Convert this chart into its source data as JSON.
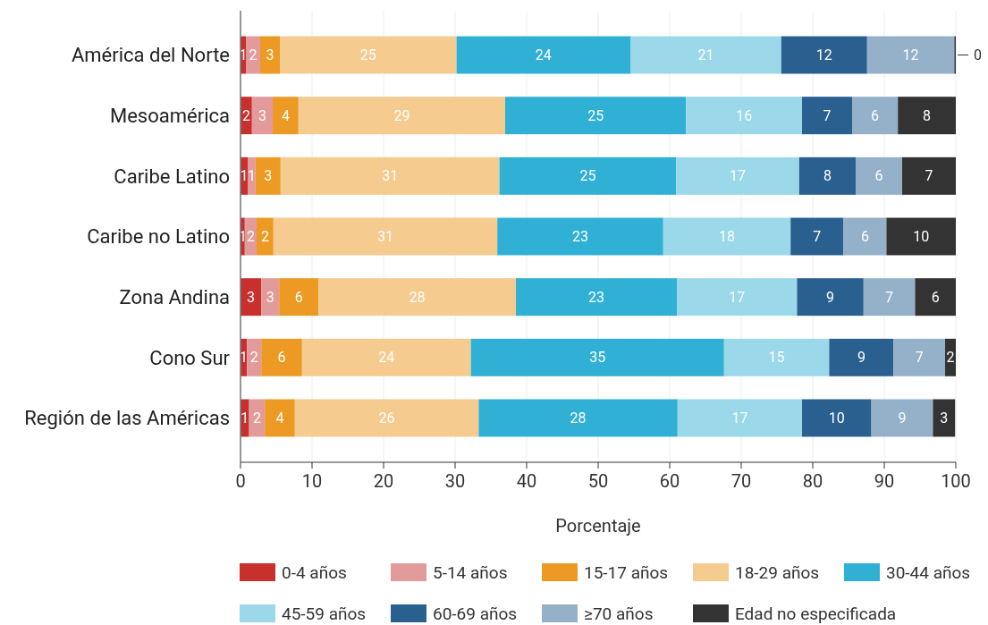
{
  "chart_data": {
    "type": "bar",
    "orientation": "horizontal",
    "stacked": true,
    "xlabel": "Porcentaje",
    "categories": [
      "América del Norte",
      "Mesoamérica",
      "Caribe Latino",
      "Caribe no Latino",
      "Zona Andina",
      "Cono Sur",
      "Región de las Américas"
    ],
    "xlim": [
      0,
      100
    ],
    "xticks": [
      0,
      10,
      20,
      30,
      40,
      50,
      60,
      70,
      80,
      90,
      100
    ],
    "grid": "x",
    "legend": "bottom",
    "series": [
      {
        "name": "0-4 años",
        "color": "#c8302e",
        "values": [
          0.75,
          1.6,
          1.0,
          0.6,
          2.9,
          0.9,
          1.2
        ],
        "value_labels": [
          "1",
          "2",
          "1",
          "1",
          "3",
          "1",
          "1"
        ]
      },
      {
        "name": "5-14 años",
        "color": "#e39a9a",
        "values": [
          2.0,
          2.9,
          1.1,
          1.65,
          2.5,
          2.0,
          2.2
        ],
        "value_labels": [
          "2",
          "3",
          "1",
          "2",
          "3",
          "2",
          "2"
        ]
      },
      {
        "name": "15-17 años",
        "color": "#ec9a23",
        "values": [
          2.75,
          3.6,
          3.5,
          2.35,
          5.5,
          5.7,
          4.2
        ],
        "value_labels": [
          "3",
          "4",
          "3",
          "2",
          "6",
          "6",
          "4"
        ]
      },
      {
        "name": "18-29 años",
        "color": "#f5cb90",
        "values": [
          24.7,
          28.9,
          30.6,
          31.3,
          27.6,
          23.6,
          25.7
        ],
        "value_labels": [
          "25",
          "29",
          "31",
          "31",
          "28",
          "24",
          "26"
        ]
      },
      {
        "name": "30-44 años",
        "color": "#31b0d6",
        "values": [
          24.3,
          25.3,
          24.7,
          23.2,
          22.5,
          35.4,
          27.8
        ],
        "value_labels": [
          "24",
          "25",
          "25",
          "23",
          "23",
          "35",
          "28"
        ]
      },
      {
        "name": "45-59 años",
        "color": "#9ad8ea",
        "values": [
          21.1,
          16.2,
          17.2,
          17.8,
          16.8,
          14.7,
          17.4
        ],
        "value_labels": [
          "21",
          "16",
          "17",
          "18",
          "17",
          "15",
          "17"
        ]
      },
      {
        "name": "60-69 años",
        "color": "#2a608f",
        "values": [
          12.0,
          7.0,
          7.9,
          7.4,
          9.3,
          9.0,
          9.7
        ],
        "value_labels": [
          "12",
          "7",
          "8",
          "7",
          "9",
          "9",
          "10"
        ]
      },
      {
        "name": "≥70 años",
        "color": "#95b0c9",
        "values": [
          12.2,
          6.4,
          6.5,
          6.0,
          7.2,
          7.2,
          8.6
        ],
        "value_labels": [
          "12",
          "6",
          "6",
          "6",
          "7",
          "7",
          "9"
        ]
      },
      {
        "name": "Edad no especificada",
        "color": "#333333",
        "values": [
          0.2,
          8.1,
          7.5,
          9.7,
          5.7,
          1.5,
          3.1
        ],
        "value_labels": [
          "0",
          "8",
          "7",
          "10",
          "6",
          "2",
          "3"
        ]
      }
    ]
  }
}
